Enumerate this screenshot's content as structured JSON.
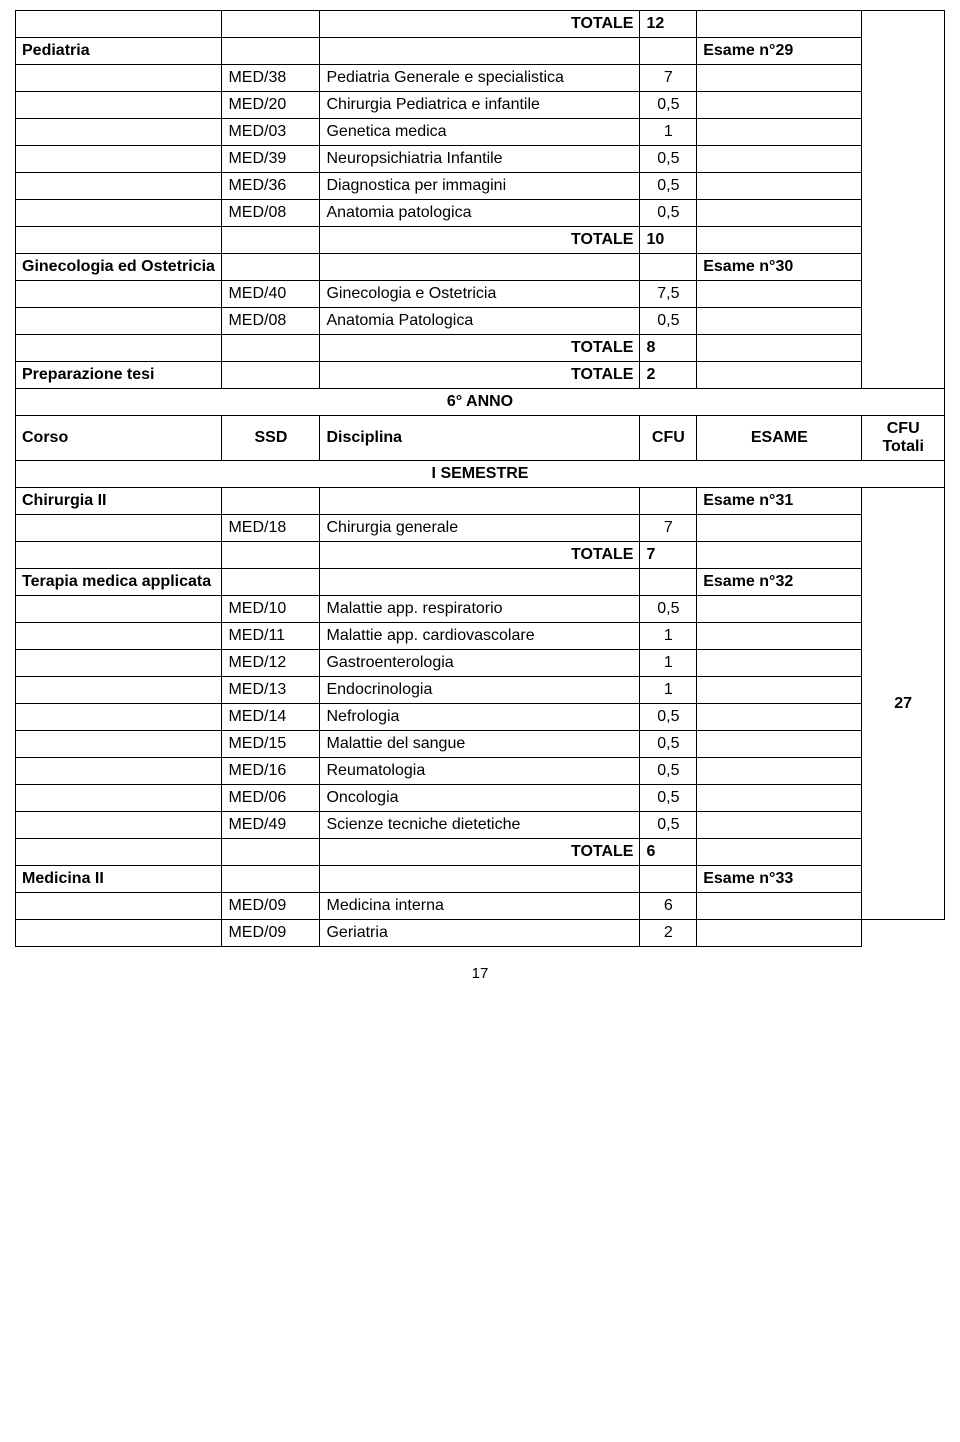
{
  "rows": [
    {
      "c3": "TOTALE",
      "c4": "12",
      "bold3": true,
      "bold4": true,
      "r3": true,
      "c6open": true
    },
    {
      "c1": "Pediatria",
      "c5": "Esame n°29",
      "bold1": true,
      "bold5": true,
      "c6open": true
    },
    {
      "c2": "MED/38",
      "c3": "Pediatria Generale e specialistica",
      "c4": "7",
      "center4": true,
      "c6open": true
    },
    {
      "c2": "MED/20",
      "c3": "Chirurgia Pediatrica e infantile",
      "c4": "0,5",
      "center4": true,
      "c6open": true
    },
    {
      "c2": "MED/03",
      "c3": "Genetica medica",
      "c4": "1",
      "center4": true,
      "c6open": true
    },
    {
      "c2": "MED/39",
      "c3": "Neuropsichiatria Infantile",
      "c4": "0,5",
      "center4": true,
      "c6open": true
    },
    {
      "c2": "MED/36",
      "c3": "Diagnostica per immagini",
      "c4": "0,5",
      "center4": true,
      "c6open": true
    },
    {
      "c2": "MED/08",
      "c3": "Anatomia patologica",
      "c4": "0,5",
      "center4": true,
      "c6open": true
    },
    {
      "c3": "TOTALE",
      "c4": "10",
      "bold3": true,
      "bold4": true,
      "r3": true,
      "c6open": true
    },
    {
      "c1": "Ginecologia ed Ostetricia",
      "c5": "Esame n°30",
      "bold1": true,
      "bold5": true,
      "c6open": true
    },
    {
      "c2": "MED/40",
      "c3": "Ginecologia e Ostetricia",
      "c4": "7,5",
      "center4": true,
      "c6open": true
    },
    {
      "c2": "MED/08",
      "c3": "Anatomia Patologica",
      "c4": "0,5",
      "center4": true,
      "c6open": true
    },
    {
      "c3": "TOTALE",
      "c4": "8",
      "bold3": true,
      "bold4": true,
      "r3": true,
      "c6open": true
    },
    {
      "c1": "Preparazione tesi",
      "c3": "TOTALE",
      "c4": "2",
      "bold1": true,
      "bold3": true,
      "bold4": true,
      "r3": true,
      "c6open": true,
      "c6closebottom": true
    },
    {
      "full": "6° ANNO",
      "bold": true,
      "center": true
    },
    {
      "c1": "Corso",
      "c2": "SSD",
      "c3": "Disciplina",
      "c4": "CFU",
      "c5": "ESAME",
      "c6": "CFU Totali",
      "boldAll": true,
      "center2": true,
      "center4": true,
      "center5": true,
      "center6": true
    },
    {
      "full": "I SEMESTRE",
      "bold": true,
      "center": true
    },
    {
      "c1": "Chirurgia II",
      "c5": "Esame n°31",
      "bold1": true,
      "bold5": true,
      "c6rowspan": 16
    },
    {
      "c2": "MED/18",
      "c3": "Chirurgia generale",
      "c4": "7",
      "center4": true
    },
    {
      "c3": "TOTALE",
      "c4": "7",
      "bold3": true,
      "bold4": true,
      "r3": true
    },
    {
      "c1": "Terapia medica applicata",
      "c5": "Esame n°32",
      "bold1": true,
      "bold5": true
    },
    {
      "c2": "MED/10",
      "c3": "Malattie app. respiratorio",
      "c4": "0,5",
      "center4": true
    },
    {
      "c2": "MED/11",
      "c3": "Malattie app. cardiovascolare",
      "c4": "1",
      "center4": true
    },
    {
      "c2": "MED/12",
      "c3": "Gastroenterologia",
      "c4": "1",
      "center4": true
    },
    {
      "c2": "MED/13",
      "c3": "Endocrinologia",
      "c4": "1",
      "center4": true
    },
    {
      "c2": "MED/14",
      "c3": "Nefrologia",
      "c4": "0,5",
      "center4": true
    },
    {
      "c2": "MED/15",
      "c3": "Malattie del sangue",
      "c4": "0,5",
      "center4": true
    },
    {
      "c2": "MED/16",
      "c3": "Reumatologia",
      "c4": "0,5",
      "center4": true
    },
    {
      "c2": "MED/06",
      "c3": "Oncologia",
      "c4": "0,5",
      "center4": true
    },
    {
      "c2": "MED/49",
      "c3": "Scienze tecniche dietetiche",
      "c4": "0,5",
      "center4": true
    },
    {
      "c3": "TOTALE",
      "c4": "6",
      "bold3": true,
      "bold4": true,
      "r3": true
    },
    {
      "c1": "Medicina II",
      "c5": "Esame n°33",
      "bold1": true,
      "bold5": true
    },
    {
      "c2": "MED/09",
      "c3": "Medicina interna",
      "c4": "6",
      "center4": true
    },
    {
      "c2": "MED/09",
      "c3": "Geriatria",
      "c4": "2",
      "center4": true
    }
  ],
  "cfu_total_value": "27",
  "page_number": "17"
}
